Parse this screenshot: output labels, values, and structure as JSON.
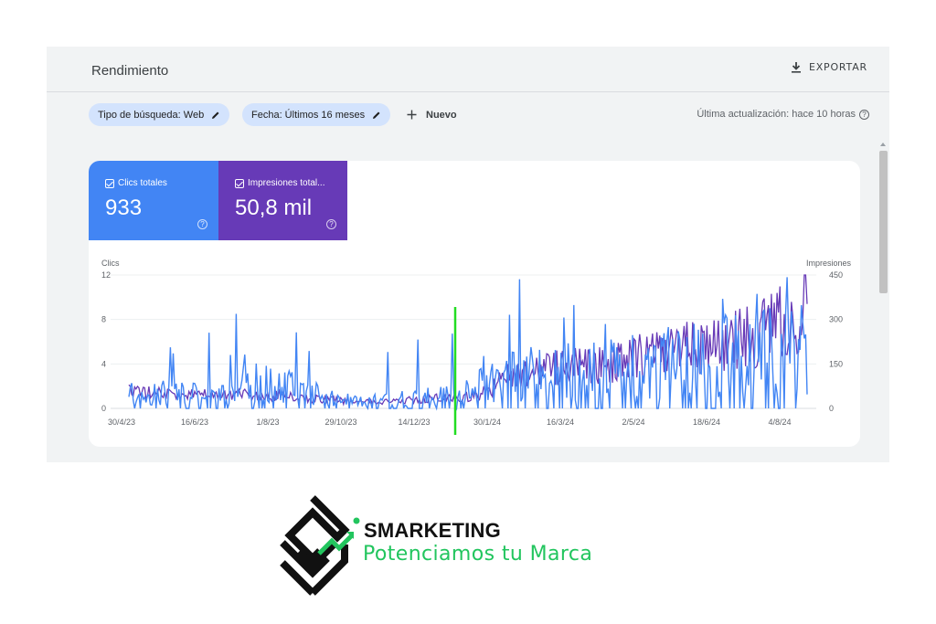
{
  "panel": {
    "title": "Rendimiento",
    "export_label": "EXPORTAR",
    "filters": [
      {
        "label": "Tipo de búsqueda: Web"
      },
      {
        "label": "Fecha: Últimos 16 meses"
      }
    ],
    "new_label": "Nuevo",
    "updated_text": "Última actualización: hace 10 horas"
  },
  "metrics": {
    "clicks": {
      "label": "Clics totales",
      "value": "933",
      "color": "#4285f4"
    },
    "impressions": {
      "label": "Impresiones total...",
      "value": "50,8 mil",
      "color": "#673ab7"
    }
  },
  "chart_data": {
    "type": "line",
    "left_axis_title": "Clics",
    "right_axis_title": "Impresiones",
    "left_ticks": [
      "12",
      "8",
      "4",
      "0"
    ],
    "right_ticks": [
      "450",
      "300",
      "150",
      "0"
    ],
    "ylim_left": [
      0,
      12
    ],
    "ylim_right": [
      0,
      450
    ],
    "x_tick_labels": [
      "30/4/23",
      "16/6/23",
      "1/8/23",
      "29/10/23",
      "14/12/23",
      "30/1/24",
      "16/3/24",
      "2/5/24",
      "18/6/24",
      "4/8/24"
    ],
    "marker_date": "2024-01-11",
    "marker_color": "#22dd22",
    "series": [
      {
        "name": "Clics",
        "color": "#4285f4"
      },
      {
        "name": "Impresiones",
        "color": "#673ab7"
      }
    ],
    "note": "Daily series from 30/4/23 to late Aug 2024; values estimated from shape",
    "clicks_anchor_points": [
      [
        0,
        1.5
      ],
      [
        60,
        1.2
      ],
      [
        95,
        2.5
      ],
      [
        140,
        1.0
      ],
      [
        160,
        0.6
      ],
      [
        200,
        1.0
      ],
      [
        240,
        1.5
      ],
      [
        250,
        2.5
      ],
      [
        265,
        3.0
      ],
      [
        300,
        3.5
      ],
      [
        340,
        3.5
      ],
      [
        370,
        4.0
      ],
      [
        400,
        4.5
      ],
      [
        440,
        5.0
      ],
      [
        470,
        5.5
      ]
    ],
    "impressions_anchor_points": [
      [
        0,
        55
      ],
      [
        60,
        45
      ],
      [
        95,
        45
      ],
      [
        140,
        30
      ],
      [
        160,
        20
      ],
      [
        200,
        30
      ],
      [
        240,
        40
      ],
      [
        250,
        55
      ],
      [
        265,
        110
      ],
      [
        300,
        140
      ],
      [
        340,
        150
      ],
      [
        370,
        190
      ],
      [
        400,
        210
      ],
      [
        440,
        250
      ],
      [
        470,
        340
      ]
    ]
  },
  "brand": {
    "name": "SMARKETING",
    "tagline": "Potenciamos tu Marca",
    "accent_color": "#22c55e"
  }
}
